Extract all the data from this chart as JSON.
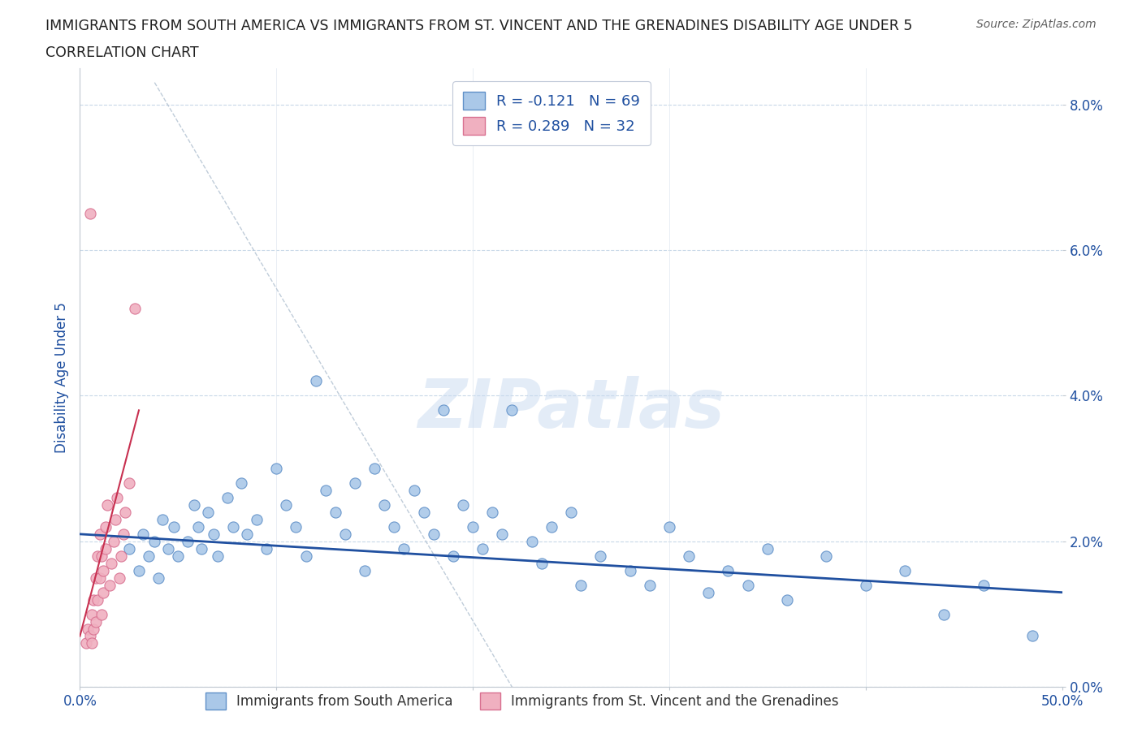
{
  "title_line1": "IMMIGRANTS FROM SOUTH AMERICA VS IMMIGRANTS FROM ST. VINCENT AND THE GRENADINES DISABILITY AGE UNDER 5",
  "title_line2": "CORRELATION CHART",
  "source": "Source: ZipAtlas.com",
  "ylabel": "Disability Age Under 5",
  "xlim": [
    0.0,
    0.5
  ],
  "ylim": [
    0.0,
    0.085
  ],
  "xtick_positions": [
    0.0,
    0.1,
    0.2,
    0.3,
    0.4,
    0.5
  ],
  "xtick_labels_visible": {
    "0.0": "0.0%",
    "0.5": "50.0%"
  },
  "yticks": [
    0.0,
    0.02,
    0.04,
    0.06,
    0.08
  ],
  "ytick_labels": [
    "0.0%",
    "2.0%",
    "4.0%",
    "6.0%",
    "8.0%"
  ],
  "blue_R": -0.121,
  "blue_N": 69,
  "pink_R": 0.289,
  "pink_N": 32,
  "blue_color": "#aac8e8",
  "blue_edge_color": "#6090c8",
  "pink_color": "#f0b0c0",
  "pink_edge_color": "#d87090",
  "trend_blue_color": "#2050a0",
  "trend_pink_color": "#c83050",
  "watermark": "ZIPatlas",
  "legend_label_blue": "Immigrants from South America",
  "legend_label_pink": "Immigrants from St. Vincent and the Grenadines",
  "blue_x": [
    0.025,
    0.03,
    0.032,
    0.035,
    0.038,
    0.04,
    0.042,
    0.045,
    0.048,
    0.05,
    0.055,
    0.058,
    0.06,
    0.062,
    0.065,
    0.068,
    0.07,
    0.075,
    0.078,
    0.082,
    0.085,
    0.09,
    0.095,
    0.1,
    0.105,
    0.11,
    0.115,
    0.12,
    0.125,
    0.13,
    0.135,
    0.14,
    0.145,
    0.15,
    0.155,
    0.16,
    0.165,
    0.17,
    0.175,
    0.18,
    0.185,
    0.19,
    0.195,
    0.2,
    0.205,
    0.21,
    0.215,
    0.22,
    0.23,
    0.235,
    0.24,
    0.25,
    0.255,
    0.265,
    0.28,
    0.29,
    0.3,
    0.31,
    0.32,
    0.33,
    0.34,
    0.35,
    0.36,
    0.38,
    0.4,
    0.42,
    0.44,
    0.46,
    0.485
  ],
  "blue_y": [
    0.019,
    0.016,
    0.021,
    0.018,
    0.02,
    0.015,
    0.023,
    0.019,
    0.022,
    0.018,
    0.02,
    0.025,
    0.022,
    0.019,
    0.024,
    0.021,
    0.018,
    0.026,
    0.022,
    0.028,
    0.021,
    0.023,
    0.019,
    0.03,
    0.025,
    0.022,
    0.018,
    0.042,
    0.027,
    0.024,
    0.021,
    0.028,
    0.016,
    0.03,
    0.025,
    0.022,
    0.019,
    0.027,
    0.024,
    0.021,
    0.038,
    0.018,
    0.025,
    0.022,
    0.019,
    0.024,
    0.021,
    0.038,
    0.02,
    0.017,
    0.022,
    0.024,
    0.014,
    0.018,
    0.016,
    0.014,
    0.022,
    0.018,
    0.013,
    0.016,
    0.014,
    0.019,
    0.012,
    0.018,
    0.014,
    0.016,
    0.01,
    0.014,
    0.007
  ],
  "pink_x": [
    0.003,
    0.004,
    0.005,
    0.005,
    0.006,
    0.006,
    0.007,
    0.007,
    0.008,
    0.008,
    0.009,
    0.009,
    0.01,
    0.01,
    0.011,
    0.011,
    0.012,
    0.012,
    0.013,
    0.013,
    0.014,
    0.015,
    0.016,
    0.017,
    0.018,
    0.019,
    0.02,
    0.021,
    0.022,
    0.023,
    0.025,
    0.028
  ],
  "pink_y": [
    0.006,
    0.008,
    0.065,
    0.007,
    0.01,
    0.006,
    0.012,
    0.008,
    0.015,
    0.009,
    0.018,
    0.012,
    0.021,
    0.015,
    0.01,
    0.018,
    0.013,
    0.016,
    0.019,
    0.022,
    0.025,
    0.014,
    0.017,
    0.02,
    0.023,
    0.026,
    0.015,
    0.018,
    0.021,
    0.024,
    0.028,
    0.052
  ],
  "blue_trend_x0": 0.0,
  "blue_trend_y0": 0.021,
  "blue_trend_x1": 0.5,
  "blue_trend_y1": 0.013,
  "pink_trend_x0": 0.0,
  "pink_trend_y0": 0.007,
  "pink_trend_x1": 0.03,
  "pink_trend_y1": 0.038,
  "ref_line_x0": 0.038,
  "ref_line_y0": 0.083,
  "ref_line_x1": 0.22,
  "ref_line_y1": 0.0
}
